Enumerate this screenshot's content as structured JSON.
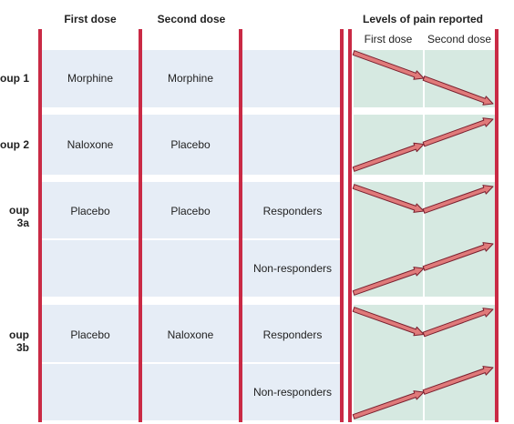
{
  "headers": {
    "first_dose": "First dose",
    "second_dose": "Second dose",
    "levels": "Levels of pain reported",
    "levels_first": "First dose",
    "levels_second": "Second dose"
  },
  "groups": [
    {
      "label": "oup 1",
      "first": "Morphine",
      "second": "Morphine",
      "responders": "",
      "pain": [
        "decrease",
        "decrease"
      ]
    },
    {
      "label": "oup 2",
      "first": "Naloxone",
      "second": "Placebo",
      "responders": "",
      "pain": [
        "increase",
        "increase"
      ]
    },
    {
      "label": "oup 3a",
      "first": "Placebo",
      "second": "Placebo",
      "responders": "Responders",
      "pain": [
        "decrease",
        "increase"
      ]
    },
    {
      "label": "",
      "first": "",
      "second": "",
      "responders": "Non-responders",
      "pain": [
        "increase",
        "increase"
      ]
    },
    {
      "label": "oup 3b",
      "first": "Placebo",
      "second": "Naloxone",
      "responders": "Responders",
      "pain": [
        "decrease",
        "increase"
      ]
    },
    {
      "label": "",
      "first": "",
      "second": "",
      "responders": "Non-responders",
      "pain": [
        "increase",
        "increase"
      ]
    }
  ],
  "colors": {
    "divider": "#c92a45",
    "arrow_fill": "#e07a7a",
    "arrow_stroke": "#7a1f2e",
    "cell_blue": "#e6edf6",
    "cell_green": "#d6e9e1"
  }
}
